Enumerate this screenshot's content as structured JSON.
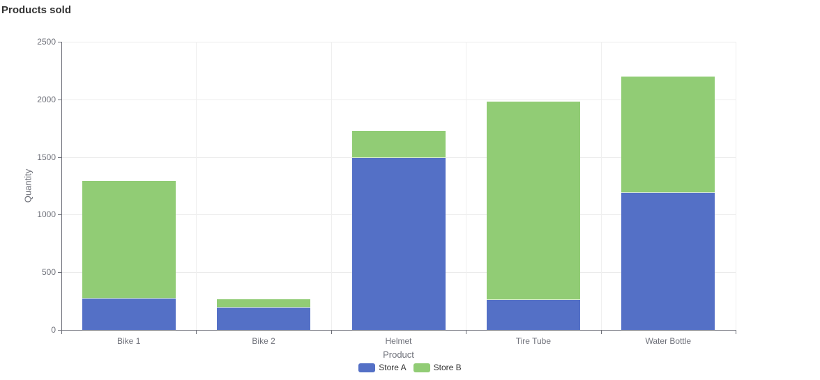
{
  "chart_data": {
    "type": "bar",
    "stacked": true,
    "title": "Products sold",
    "xlabel": "Product",
    "ylabel": "Quantity",
    "categories": [
      "Bike 1",
      "Bike 2",
      "Helmet",
      "Tire Tube",
      "Water Bottle"
    ],
    "series": [
      {
        "name": "Store A",
        "color": "#5470C6",
        "values": [
          270,
          195,
          1490,
          260,
          1190
        ]
      },
      {
        "name": "Store B",
        "color": "#91CC75",
        "values": [
          1020,
          70,
          235,
          1720,
          1010
        ]
      }
    ],
    "ylim": [
      0,
      2500
    ],
    "yticks": [
      0,
      500,
      1000,
      1500,
      2000,
      2500
    ],
    "grid": true,
    "legend_position": "bottom",
    "axis_color": "#6E7079",
    "gridline_color": "#ebebeb"
  }
}
